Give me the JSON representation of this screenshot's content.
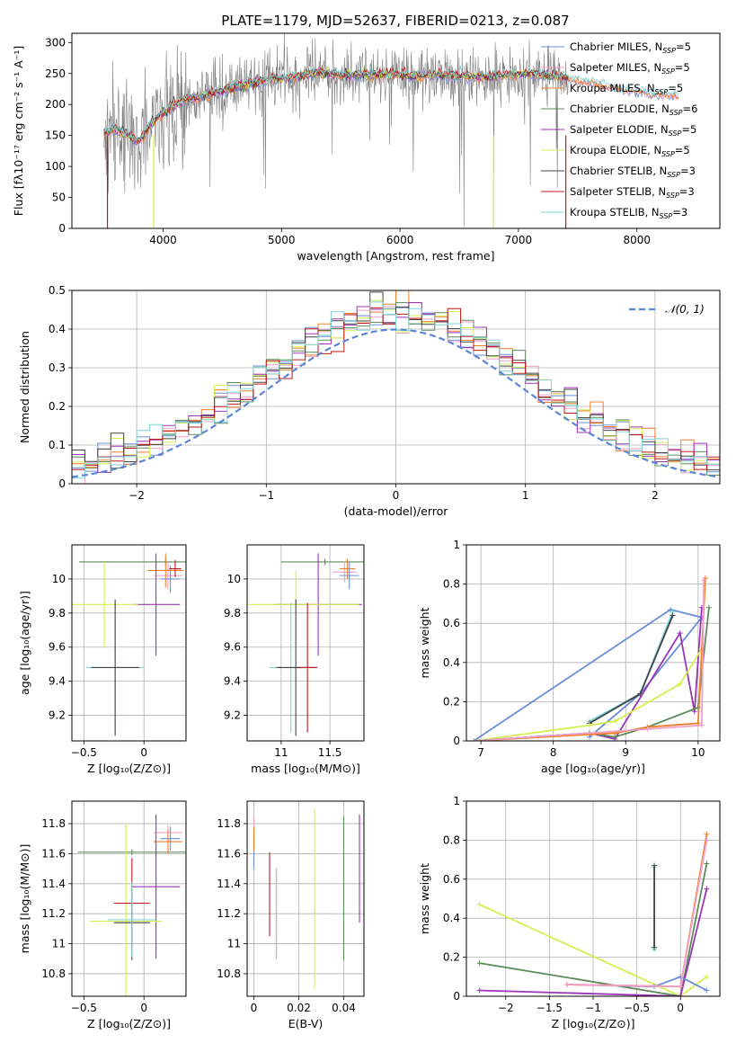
{
  "figure": {
    "title": "PLATE=1179, MJD=52637, FIBERID=0213, z=0.087",
    "colors": {
      "chabrier_miles": "#6a8fd6",
      "salpeter_miles": "#f0a0c8",
      "kroupa_miles": "#f07f2a",
      "chabrier_elodie": "#5a8a5a",
      "salpeter_elodie": "#9b35b5",
      "kroupa_elodie": "#d4ef52",
      "chabrier_stelib": "#444444",
      "salpeter_stelib": "#c01818",
      "kroupa_stelib": "#7fd4d4",
      "data": "#808080",
      "normal": "#5b85d6"
    }
  },
  "chart_data": [
    {
      "id": "spectrum",
      "type": "line",
      "title": "PLATE=1179, MJD=52637, FIBERID=0213, z=0.087",
      "xlabel": "wavelength [Angstrom, rest frame]",
      "ylabel": "Flux [fλ10⁻¹⁷ erg cm⁻² s⁻¹ A⁻¹]",
      "xlim": [
        3230,
        8700
      ],
      "ylim": [
        0,
        315
      ],
      "xticks": [
        4000,
        5000,
        6000,
        7000,
        8000
      ],
      "yticks": [
        0,
        50,
        100,
        150,
        200,
        250,
        300
      ],
      "legend_position": "top-right",
      "legend": [
        "Chabrier MILES, N_SSP=5",
        "Salpeter MILES, N_SSP=5",
        "Kroupa MILES, N_SSP=5",
        "Chabrier ELODIE, N_SSP=6",
        "Salpeter ELODIE, N_SSP=5",
        "Kroupa ELODIE, N_SSP=5",
        "Chabrier STELIB, N_SSP=3",
        "Salpeter STELIB, N_SSP=3",
        "Kroupa STELIB, N_SSP=3"
      ],
      "model_continuum": {
        "x": [
          3500,
          3600,
          3700,
          3800,
          3900,
          4000,
          4100,
          4200,
          4300,
          4500,
          4700,
          4900,
          5100,
          5300,
          5500,
          5700,
          5900,
          6100,
          6300,
          6500,
          6700,
          6900,
          7100,
          7300,
          7500,
          7700,
          7900,
          8100,
          8300
        ],
        "y": [
          155,
          160,
          150,
          140,
          170,
          185,
          200,
          208,
          212,
          222,
          232,
          240,
          244,
          252,
          248,
          247,
          249,
          246,
          248,
          246,
          244,
          247,
          250,
          246,
          240,
          232,
          225,
          218,
          215
        ]
      },
      "data_sigma": 22
    },
    {
      "id": "residuals",
      "type": "bar",
      "xlabel": "(data-model)/error",
      "ylabel": "Normed distribution",
      "xlim": [
        -2.5,
        2.5
      ],
      "ylim": [
        0,
        0.5
      ],
      "xticks": [
        -2,
        -1,
        0,
        1,
        2
      ],
      "yticks": [
        0.0,
        0.1,
        0.2,
        0.3,
        0.4,
        0.5
      ],
      "legend_position": "top-right",
      "legend": [
        "𝒩(0, 1)"
      ],
      "bin_width": 0.1
    },
    {
      "id": "age_vs_Z",
      "type": "scatter",
      "xlabel": "Z [log₁₀(Z/Z⊙)]",
      "ylabel": "age  [log₁₀(age/yr)]",
      "xlim": [
        -0.6,
        0.35
      ],
      "ylim": [
        9.05,
        10.2
      ],
      "xticks": [
        -0.5,
        0.0
      ],
      "yticks": [
        9.2,
        9.4,
        9.6,
        9.8,
        10.0
      ],
      "points": [
        {
          "x": 0.18,
          "y": 10.1,
          "xerr": 0.72,
          "yerr": 0.02,
          "c": "chabrier_elodie"
        },
        {
          "x": 0.2,
          "y": 10.02,
          "xerr": 0.12,
          "yerr": 0.08,
          "c": "salpeter_miles"
        },
        {
          "x": 0.18,
          "y": 10.05,
          "xerr": 0.15,
          "yerr": 0.1,
          "c": "kroupa_miles"
        },
        {
          "x": 0.22,
          "y": 10.0,
          "xerr": 0.08,
          "yerr": 0.08,
          "c": "chabrier_miles"
        },
        {
          "x": 0.1,
          "y": 9.85,
          "xerr": 0.2,
          "yerr": 0.3,
          "c": "salpeter_elodie"
        },
        {
          "x": -0.33,
          "y": 9.85,
          "xerr": 0.28,
          "yerr": 0.25,
          "c": "kroupa_elodie"
        },
        {
          "x": -0.24,
          "y": 9.48,
          "xerr": 0.24,
          "yerr": 0.38,
          "c": "kroupa_stelib"
        },
        {
          "x": -0.24,
          "y": 9.48,
          "xerr": 0.2,
          "yerr": 0.4,
          "c": "chabrier_stelib"
        },
        {
          "x": 0.26,
          "y": 10.06,
          "xerr": 0.05,
          "yerr": 0.05,
          "c": "salpeter_stelib"
        }
      ]
    },
    {
      "id": "age_vs_mass",
      "type": "scatter",
      "xlabel": "mass [log₁₀(M/M⊙)]",
      "ylabel": "",
      "xlim": [
        10.65,
        11.85
      ],
      "ylim": [
        9.05,
        10.2
      ],
      "xticks": [
        11.0,
        11.5
      ],
      "yticks": [
        9.2,
        9.4,
        9.6,
        9.8,
        10.0
      ],
      "points": [
        {
          "x": 11.45,
          "y": 10.1,
          "xerr": 0.45,
          "yerr": 0.02,
          "c": "chabrier_elodie"
        },
        {
          "x": 11.65,
          "y": 10.04,
          "xerr": 0.12,
          "yerr": 0.06,
          "c": "salpeter_miles"
        },
        {
          "x": 11.68,
          "y": 10.06,
          "xerr": 0.08,
          "yerr": 0.06,
          "c": "kroupa_miles"
        },
        {
          "x": 11.7,
          "y": 10.02,
          "xerr": 0.1,
          "yerr": 0.08,
          "c": "chabrier_miles"
        },
        {
          "x": 11.38,
          "y": 9.85,
          "xerr": 0.45,
          "yerr": 0.3,
          "c": "salpeter_elodie"
        },
        {
          "x": 11.15,
          "y": 9.85,
          "xerr": 0.65,
          "yerr": 0.2,
          "c": "kroupa_elodie"
        },
        {
          "x": 11.1,
          "y": 9.48,
          "xerr": 0.22,
          "yerr": 0.38,
          "c": "kroupa_stelib"
        },
        {
          "x": 11.15,
          "y": 9.48,
          "xerr": 0.2,
          "yerr": 0.4,
          "c": "chabrier_stelib"
        },
        {
          "x": 11.27,
          "y": 9.48,
          "xerr": 0.1,
          "yerr": 0.38,
          "c": "salpeter_stelib"
        }
      ]
    },
    {
      "id": "massweight_vs_age",
      "type": "line",
      "xlabel": "age  [log₁₀(age/yr)]",
      "ylabel": "mass weight",
      "xlim": [
        6.8,
        10.3
      ],
      "ylim": [
        0,
        1.0
      ],
      "xticks": [
        7,
        8,
        9,
        10
      ],
      "yticks": [
        0.0,
        0.2,
        0.4,
        0.6,
        0.8,
        1.0
      ],
      "series": [
        {
          "c": "chabrier_miles",
          "x": [
            8.5,
            9.2,
            10.05,
            9.62,
            6.9
          ],
          "y": [
            0.02,
            0.24,
            0.63,
            0.67,
            0.0
          ]
        },
        {
          "c": "kroupa_stelib",
          "x": [
            8.5,
            9.2,
            9.65
          ],
          "y": [
            0.1,
            0.24,
            0.66
          ]
        },
        {
          "c": "chabrier_stelib",
          "x": [
            8.5,
            9.2,
            9.65
          ],
          "y": [
            0.09,
            0.24,
            0.64
          ]
        },
        {
          "c": "salpeter_elodie",
          "x": [
            6.9,
            8.5,
            8.85,
            9.75,
            9.95,
            10.05
          ],
          "y": [
            0.0,
            0.04,
            0.01,
            0.55,
            0.15,
            0.68
          ]
        },
        {
          "c": "kroupa_elodie",
          "x": [
            6.9,
            8.5,
            8.85,
            9.75,
            10.05
          ],
          "y": [
            0.0,
            0.08,
            0.1,
            0.29,
            0.47
          ]
        },
        {
          "c": "chabrier_elodie",
          "x": [
            6.9,
            8.5,
            8.85,
            9.3,
            10.0,
            10.15
          ],
          "y": [
            0.0,
            0.04,
            0.02,
            0.07,
            0.17,
            0.68
          ]
        },
        {
          "c": "kroupa_miles",
          "x": [
            6.9,
            8.85,
            9.3,
            10.0,
            10.1
          ],
          "y": [
            0.0,
            0.04,
            0.07,
            0.09,
            0.83
          ]
        },
        {
          "c": "salpeter_miles",
          "x": [
            6.9,
            9.3,
            10.05,
            10.08
          ],
          "y": [
            0.0,
            0.06,
            0.08,
            0.82
          ]
        }
      ]
    },
    {
      "id": "mass_vs_Z",
      "type": "scatter",
      "xlabel": "Z [log₁₀(Z/Z⊙)]",
      "ylabel": "mass [log₁₀(M/M⊙)]",
      "xlim": [
        -0.6,
        0.35
      ],
      "ylim": [
        10.65,
        11.95
      ],
      "xticks": [
        -0.5,
        0.0
      ],
      "yticks": [
        10.8,
        11.0,
        11.2,
        11.4,
        11.6,
        11.8
      ],
      "points": [
        {
          "x": -0.1,
          "y": 11.61,
          "xerr": 0.45,
          "yerr": 0.02,
          "c": "chabrier_elodie"
        },
        {
          "x": 0.2,
          "y": 11.74,
          "xerr": 0.12,
          "yerr": 0.05,
          "c": "salpeter_miles"
        },
        {
          "x": 0.2,
          "y": 11.68,
          "xerr": 0.12,
          "yerr": 0.08,
          "c": "kroupa_miles"
        },
        {
          "x": 0.22,
          "y": 11.7,
          "xerr": 0.08,
          "yerr": 0.08,
          "c": "chabrier_miles"
        },
        {
          "x": 0.1,
          "y": 11.38,
          "xerr": 0.2,
          "yerr": 0.48,
          "c": "salpeter_elodie"
        },
        {
          "x": -0.15,
          "y": 11.15,
          "xerr": 0.3,
          "yerr": 0.65,
          "c": "kroupa_elodie"
        },
        {
          "x": -0.1,
          "y": 11.27,
          "xerr": 0.15,
          "yerr": 0.3,
          "c": "salpeter_stelib"
        },
        {
          "x": -0.1,
          "y": 11.14,
          "xerr": 0.15,
          "yerr": 0.25,
          "c": "chabrier_stelib"
        },
        {
          "x": -0.1,
          "y": 11.16,
          "xerr": 0.2,
          "yerr": 0.25,
          "c": "kroupa_stelib"
        }
      ]
    },
    {
      "id": "mass_vs_EBV",
      "type": "scatter",
      "xlabel": "E(B-V)",
      "ylabel": "",
      "xlim": [
        -0.003,
        0.049
      ],
      "ylim": [
        10.65,
        11.95
      ],
      "xticks": [
        0.0,
        0.02,
        0.04
      ],
      "yticks": [
        10.8,
        11.0,
        11.2,
        11.4,
        11.6,
        11.8
      ],
      "points": [
        {
          "x": 0.0,
          "y": 11.7,
          "yerr": 0.15,
          "c": "salpeter_miles"
        },
        {
          "x": 0.0,
          "y": 11.6,
          "yerr": 0.1,
          "c": "chabrier_miles"
        },
        {
          "x": 0.0,
          "y": 11.7,
          "yerr": 0.08,
          "c": "kroupa_miles"
        },
        {
          "x": 0.007,
          "y": 11.33,
          "yerr": 0.28,
          "c": "salpeter_stelib"
        },
        {
          "x": 0.01,
          "y": 11.2,
          "yerr": 0.3,
          "c": "chabrier_stelib"
        },
        {
          "x": 0.01,
          "y": 11.2,
          "yerr": 0.3,
          "c": "kroupa_stelib"
        },
        {
          "x": 0.027,
          "y": 11.3,
          "yerr": 0.6,
          "c": "kroupa_elodie"
        },
        {
          "x": 0.04,
          "y": 11.37,
          "yerr": 0.48,
          "c": "chabrier_elodie"
        },
        {
          "x": 0.047,
          "y": 11.5,
          "yerr": 0.36,
          "c": "salpeter_elodie"
        }
      ]
    },
    {
      "id": "massweight_vs_Z",
      "type": "line",
      "xlabel": "Z [log₁₀(Z/Z⊙)]",
      "ylabel": "mass weight",
      "xlim": [
        -2.45,
        0.45
      ],
      "ylim": [
        0,
        1.0
      ],
      "xticks": [
        -2.0,
        -1.5,
        -1.0,
        -0.5,
        0.0
      ],
      "yticks": [
        0.0,
        0.2,
        0.4,
        0.6,
        0.8,
        1.0
      ],
      "series": [
        {
          "c": "kroupa_elodie",
          "x": [
            -2.3,
            0.0,
            0.3
          ],
          "y": [
            0.47,
            0.0,
            0.1
          ]
        },
        {
          "c": "chabrier_elodie",
          "x": [
            -2.3,
            0.0,
            0.3
          ],
          "y": [
            0.17,
            0.0,
            0.68
          ]
        },
        {
          "c": "salpeter_elodie",
          "x": [
            -2.3,
            0.0,
            0.3
          ],
          "y": [
            0.03,
            0.0,
            0.55
          ]
        },
        {
          "c": "chabrier_miles",
          "x": [
            -1.3,
            -0.3,
            0.0,
            0.3
          ],
          "y": [
            0.06,
            0.05,
            0.1,
            0.03
          ]
        },
        {
          "c": "kroupa_miles",
          "x": [
            -1.3,
            0.0,
            0.3
          ],
          "y": [
            0.06,
            0.05,
            0.83
          ]
        },
        {
          "c": "salpeter_miles",
          "x": [
            -1.3,
            0.0,
            0.3
          ],
          "y": [
            0.06,
            0.05,
            0.8
          ]
        },
        {
          "c": "kroupa_stelib",
          "x": [
            -0.3,
            -0.3
          ],
          "y": [
            0.24,
            0.66
          ]
        },
        {
          "c": "chabrier_stelib",
          "x": [
            -0.3,
            -0.3
          ],
          "y": [
            0.25,
            0.67
          ]
        }
      ]
    }
  ]
}
